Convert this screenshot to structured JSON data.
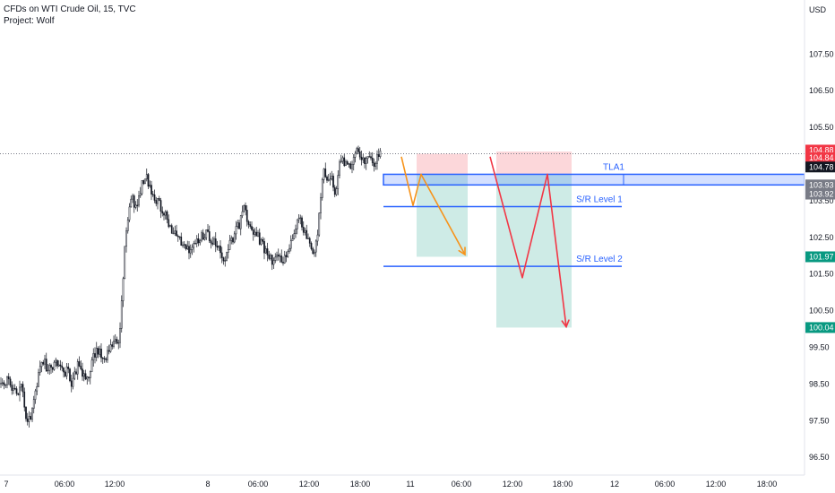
{
  "header": {
    "title": "CFDs on WTI Crude Oil, 15, TVC",
    "subtitle": "Project: Wolf"
  },
  "chart_data": {
    "type": "candlestick",
    "currency": "USD",
    "y_axis": {
      "ticks": [
        "107.50",
        "106.50",
        "105.50",
        "104.50",
        "103.50",
        "102.50",
        "101.50",
        "100.50",
        "99.50",
        "98.50",
        "97.50",
        "96.50"
      ],
      "range": [
        96.4,
        108.8
      ]
    },
    "x_axis": {
      "ticks": [
        "7",
        "06:00",
        "12:00",
        "8",
        "06:00",
        "12:00",
        "18:00",
        "11",
        "06:00",
        "12:00",
        "18:00",
        "12",
        "06:00",
        "12:00",
        "18:00"
      ]
    },
    "price_badges": [
      {
        "value": "104.88",
        "price": 104.88,
        "color": "#f23645"
      },
      {
        "value": "104.84",
        "price": 104.67,
        "color": "#f23645"
      },
      {
        "value": "104.78",
        "price": 104.42,
        "color": "#131722"
      },
      {
        "value": "103.93",
        "price": 103.93,
        "color": "#787b86"
      },
      {
        "value": "103.92",
        "price": 103.68,
        "color": "#787b86"
      },
      {
        "value": "101.97",
        "price": 101.97,
        "color": "#089981"
      },
      {
        "value": "100.04",
        "price": 100.04,
        "color": "#089981"
      }
    ],
    "last_price": 104.78,
    "series": [
      {
        "name": "WTI 15m",
        "anchors": [
          [
            0,
            98.5
          ],
          [
            10,
            98.6
          ],
          [
            18,
            98.2
          ],
          [
            24,
            98.5
          ],
          [
            30,
            97.3
          ],
          [
            34,
            97.6
          ],
          [
            40,
            98.4
          ],
          [
            46,
            99.2
          ],
          [
            54,
            98.9
          ],
          [
            62,
            99.1
          ],
          [
            70,
            98.8
          ],
          [
            76,
            98.9
          ],
          [
            80,
            98.4
          ],
          [
            86,
            99.0
          ],
          [
            92,
            98.8
          ],
          [
            98,
            98.6
          ],
          [
            104,
            99.3
          ],
          [
            110,
            99.4
          ],
          [
            116,
            99.1
          ],
          [
            122,
            99.5
          ],
          [
            128,
            99.6
          ],
          [
            133,
            99.8
          ],
          [
            136,
            100.8
          ],
          [
            138,
            101.5
          ],
          [
            140,
            102.6
          ],
          [
            142,
            103.0
          ],
          [
            146,
            103.6
          ],
          [
            152,
            103.3
          ],
          [
            158,
            103.9
          ],
          [
            162,
            104.2
          ],
          [
            166,
            104.0
          ],
          [
            170,
            103.7
          ],
          [
            176,
            103.5
          ],
          [
            180,
            103.3
          ],
          [
            186,
            103.0
          ],
          [
            190,
            102.7
          ],
          [
            196,
            102.6
          ],
          [
            202,
            102.3
          ],
          [
            208,
            102.2
          ],
          [
            214,
            102.2
          ],
          [
            220,
            102.4
          ],
          [
            226,
            102.5
          ],
          [
            232,
            102.6
          ],
          [
            238,
            102.4
          ],
          [
            244,
            102.2
          ],
          [
            250,
            101.9
          ],
          [
            256,
            102.3
          ],
          [
            262,
            102.6
          ],
          [
            268,
            102.9
          ],
          [
            272,
            103.5
          ],
          [
            276,
            103.0
          ],
          [
            280,
            102.7
          ],
          [
            286,
            102.6
          ],
          [
            292,
            102.3
          ],
          [
            298,
            102.1
          ],
          [
            304,
            101.8
          ],
          [
            310,
            102.0
          ],
          [
            316,
            101.8
          ],
          [
            322,
            102.2
          ],
          [
            328,
            102.7
          ],
          [
            334,
            103.2
          ],
          [
            340,
            102.6
          ],
          [
            346,
            102.2
          ],
          [
            350,
            101.9
          ],
          [
            354,
            102.5
          ],
          [
            358,
            103.6
          ],
          [
            362,
            104.4
          ],
          [
            366,
            104.0
          ],
          [
            370,
            104.1
          ],
          [
            374,
            103.7
          ],
          [
            378,
            104.4
          ],
          [
            382,
            104.7
          ],
          [
            386,
            104.5
          ],
          [
            390,
            104.4
          ],
          [
            394,
            104.7
          ],
          [
            398,
            104.9
          ],
          [
            402,
            104.7
          ],
          [
            406,
            104.5
          ],
          [
            410,
            104.7
          ],
          [
            414,
            104.6
          ],
          [
            418,
            104.5
          ],
          [
            422,
            104.7
          ],
          [
            426,
            104.78
          ]
        ]
      }
    ],
    "zones": [
      {
        "name": "TLA1",
        "label": "TLA1",
        "x_from": 428,
        "x_to": 898,
        "price_top": 104.22,
        "price_bottom": 103.93
      },
      {
        "name": "S/R Level 1",
        "label": "S/R Level 1",
        "x_from": 428,
        "x_to": 694,
        "price": 103.34
      },
      {
        "name": "S/R Level 2",
        "label": "S/R Level 2",
        "x_from": 428,
        "x_to": 694,
        "price": 101.71
      }
    ],
    "positions": [
      {
        "x_from": 465,
        "x_to": 522,
        "entry": 104.22,
        "stop": 104.78,
        "target": 101.97
      },
      {
        "x_from": 554,
        "x_to": 638,
        "entry": 104.22,
        "stop": 104.84,
        "target": 100.04
      }
    ],
    "projections": [
      {
        "color": "#f7931a",
        "points": [
          [
            448,
            104.7
          ],
          [
            461,
            103.37
          ],
          [
            470,
            104.22
          ],
          [
            519,
            102.03
          ]
        ]
      },
      {
        "color": "#f23645",
        "points": [
          [
            547,
            104.7
          ],
          [
            583,
            101.4
          ],
          [
            611,
            104.22
          ],
          [
            632,
            100.06
          ]
        ]
      }
    ]
  }
}
